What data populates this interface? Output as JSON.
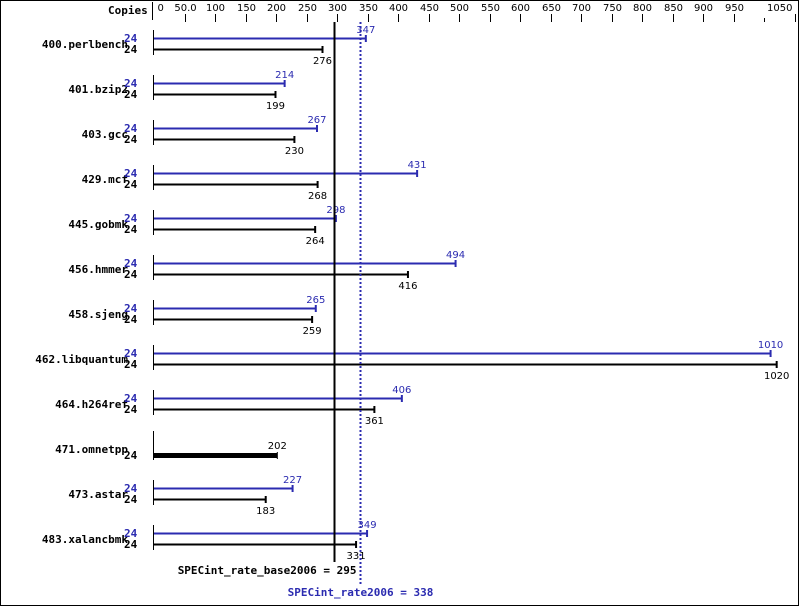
{
  "chart_data": {
    "type": "bar",
    "orientation": "horizontal",
    "header_label": "Copies",
    "xlim": [
      0,
      1050
    ],
    "ticks": [
      0,
      50,
      100,
      150,
      200,
      250,
      300,
      350,
      400,
      450,
      500,
      550,
      600,
      650,
      700,
      750,
      800,
      850,
      900,
      950,
      1000,
      1050
    ],
    "tick_labels": [
      "0",
      "50.0",
      "100",
      "150",
      "200",
      "250",
      "300",
      "350",
      "400",
      "450",
      "500",
      "550",
      "600",
      "650",
      "700",
      "750",
      "800",
      "850",
      "900",
      "950",
      "",
      "1050"
    ],
    "categories": [
      "400.perlbench",
      "401.bzip2",
      "403.gcc",
      "429.mcf",
      "445.gobmk",
      "456.hmmer",
      "458.sjeng",
      "462.libquantum",
      "464.h264ref",
      "471.omnetpp",
      "473.astar",
      "483.xalancbmk"
    ],
    "series": [
      {
        "name": "SPECint_rate2006",
        "color": "#2b2bb0",
        "copies": [
          "24",
          "24",
          "24",
          "24",
          "24",
          "24",
          "24",
          "24",
          "24",
          null,
          "24",
          "24"
        ],
        "values": [
          347,
          214,
          267,
          431,
          298,
          494,
          265,
          1010,
          406,
          null,
          227,
          349
        ]
      },
      {
        "name": "SPECint_rate_base2006",
        "color": "#000000",
        "copies": [
          "24",
          "24",
          "24",
          "24",
          "24",
          "24",
          "24",
          "24",
          "24",
          "24",
          "24",
          "24"
        ],
        "values": [
          276,
          199,
          230,
          268,
          264,
          416,
          259,
          1020,
          361,
          202,
          183,
          331
        ]
      }
    ],
    "reference_lines": [
      {
        "label": "SPECint_rate_base2006 = 295",
        "value": 295,
        "color": "#000000",
        "style": "solid"
      },
      {
        "label": "SPECint_rate2006 = 338",
        "value": 338,
        "color": "#2b2bb0",
        "style": "dotted"
      }
    ]
  }
}
